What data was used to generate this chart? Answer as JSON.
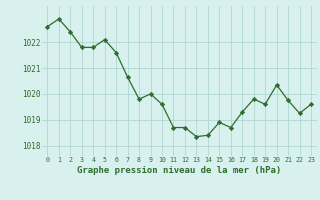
{
  "hours": [
    0,
    1,
    2,
    3,
    4,
    5,
    6,
    7,
    8,
    9,
    10,
    11,
    12,
    13,
    14,
    15,
    16,
    17,
    18,
    19,
    20,
    21,
    22,
    23
  ],
  "pressure": [
    1022.6,
    1022.9,
    1022.4,
    1021.8,
    1021.8,
    1022.1,
    1021.6,
    1020.65,
    1019.8,
    1020.0,
    1019.6,
    1018.7,
    1018.7,
    1018.35,
    1018.4,
    1018.9,
    1018.7,
    1019.3,
    1019.8,
    1019.6,
    1020.35,
    1019.75,
    1019.25,
    1019.6
  ],
  "line_color": "#2d6e2d",
  "marker_color": "#2d6e2d",
  "bg_color": "#d8f0ee",
  "grid_color": "#b0d8d0",
  "text_color": "#2d6e2d",
  "xlabel": "Graphe pression niveau de la mer (hPa)",
  "yticks": [
    1018,
    1019,
    1020,
    1021,
    1022
  ],
  "ylim": [
    1017.6,
    1023.4
  ],
  "xlim": [
    -0.5,
    23.5
  ]
}
